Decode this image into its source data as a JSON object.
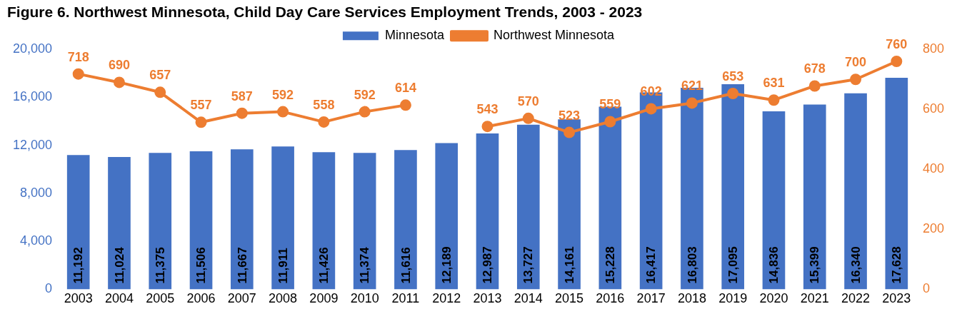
{
  "chart_data": {
    "type": "bar",
    "title": "Figure 6. Northwest Minnesota, Child Day Care Services Employment Trends, 2003 - 2023",
    "categories": [
      "2003",
      "2004",
      "2005",
      "2006",
      "2007",
      "2008",
      "2009",
      "2010",
      "2011",
      "2012",
      "2013",
      "2014",
      "2015",
      "2016",
      "2017",
      "2018",
      "2019",
      "2020",
      "2021",
      "2022",
      "2023"
    ],
    "series": [
      {
        "name": "Minnesota",
        "color": "#4472c4",
        "values": [
          11192,
          11024,
          11375,
          11506,
          11667,
          11911,
          11426,
          11374,
          11616,
          12189,
          12987,
          13727,
          14161,
          15228,
          16417,
          16803,
          17095,
          14836,
          15399,
          16340,
          17628
        ],
        "value_labels": [
          "11,192",
          "11,024",
          "11,375",
          "11,506",
          "11,667",
          "11,911",
          "11,426",
          "11,374",
          "11,616",
          "12,189",
          "12,987",
          "13,727",
          "14,161",
          "15,228",
          "16,417",
          "16,803",
          "17,095",
          "14,836",
          "15,399",
          "16,340",
          "17,628"
        ]
      },
      {
        "name": "Northwest Minnesota",
        "type": "line",
        "axis": "y2",
        "color": "#ed7d31",
        "values": [
          718,
          690,
          657,
          557,
          587,
          592,
          558,
          592,
          614,
          null,
          543,
          570,
          523,
          559,
          602,
          621,
          653,
          631,
          678,
          700,
          760
        ]
      }
    ],
    "ylim": [
      0,
      20000
    ],
    "yticks": [
      {
        "value": 0,
        "label": "0"
      },
      {
        "value": 4000,
        "label": "4,000"
      },
      {
        "value": 8000,
        "label": "8,000"
      },
      {
        "value": 12000,
        "label": "12,000"
      },
      {
        "value": 16000,
        "label": "16,000"
      },
      {
        "value": 20000,
        "label": "20,000"
      }
    ],
    "y2lim": [
      0,
      800
    ],
    "y2ticks": [
      0,
      200,
      400,
      600,
      800
    ],
    "data_labels": true,
    "legend": "top",
    "grid": false,
    "marker": "circle",
    "line_style": "solid"
  }
}
